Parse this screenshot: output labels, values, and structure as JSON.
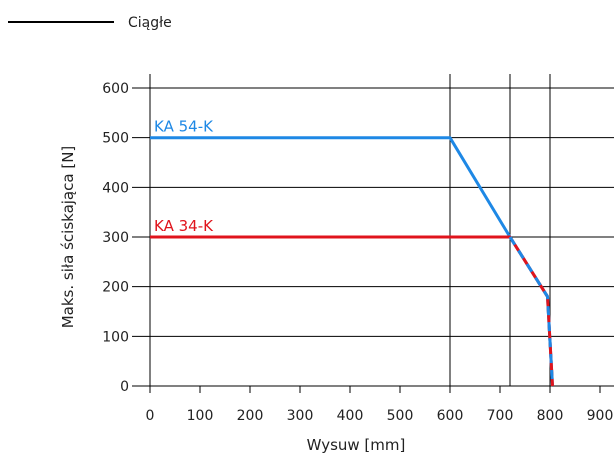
{
  "chart_data": {
    "type": "line",
    "legend": {
      "label": "Ciągłe",
      "placement": "top-left",
      "line_color": "#000000"
    },
    "xlabel": "Wysuw [mm]",
    "ylabel": "Maks. siła ściskająca [N]",
    "xlim": [
      0,
      900
    ],
    "ylim": [
      0,
      600
    ],
    "xticks": [
      0,
      100,
      200,
      300,
      400,
      500,
      600,
      700,
      800,
      900
    ],
    "yticks": [
      0,
      100,
      200,
      300,
      400,
      500,
      600
    ],
    "vertical_gridlines": [
      600,
      720,
      800
    ],
    "series": [
      {
        "name": "KA 54-K",
        "color": "#1e88e5",
        "dashed": false,
        "points": [
          [
            0,
            500
          ],
          [
            600,
            500
          ],
          [
            720,
            300
          ],
          [
            795,
            180
          ],
          [
            805,
            0
          ]
        ]
      },
      {
        "name": "KA 34-K",
        "color": "#e0141c",
        "dashed": false,
        "points": [
          [
            0,
            300
          ],
          [
            720,
            300
          ],
          [
            795,
            180
          ],
          [
            805,
            0
          ]
        ]
      }
    ]
  }
}
